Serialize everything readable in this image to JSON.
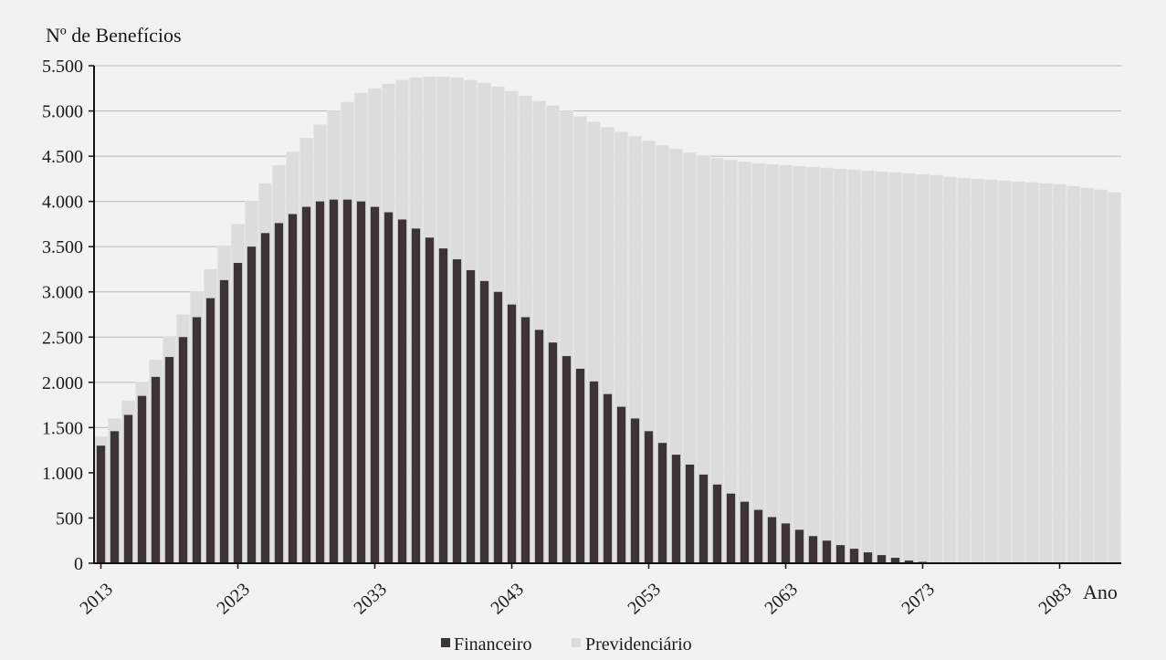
{
  "chart_data": {
    "type": "bar",
    "ylabel": "Nº de Benefícios",
    "xlabel": "Ano",
    "ylim": [
      0,
      5500
    ],
    "yticks": [
      0,
      500,
      1000,
      1500,
      2000,
      2500,
      3000,
      3500,
      4000,
      4500,
      5000,
      5500
    ],
    "ytick_labels": [
      "0",
      "500",
      "1.000",
      "1.500",
      "2.000",
      "2.500",
      "3.000",
      "3.500",
      "4.000",
      "4.500",
      "5.000",
      "5.500"
    ],
    "xtick_labels": [
      "2013",
      "2023",
      "2033",
      "2043",
      "2053",
      "2063",
      "2073",
      "2083"
    ],
    "grid": true,
    "legend_position": "bottom-center",
    "colors": {
      "Financeiro": "#3b3336",
      "Previdenciário": "#dcdcdc"
    },
    "x": [
      2013,
      2014,
      2015,
      2016,
      2017,
      2018,
      2019,
      2020,
      2021,
      2022,
      2023,
      2024,
      2025,
      2026,
      2027,
      2028,
      2029,
      2030,
      2031,
      2032,
      2033,
      2034,
      2035,
      2036,
      2037,
      2038,
      2039,
      2040,
      2041,
      2042,
      2043,
      2044,
      2045,
      2046,
      2047,
      2048,
      2049,
      2050,
      2051,
      2052,
      2053,
      2054,
      2055,
      2056,
      2057,
      2058,
      2059,
      2060,
      2061,
      2062,
      2063,
      2064,
      2065,
      2066,
      2067,
      2068,
      2069,
      2070,
      2071,
      2072,
      2073,
      2074,
      2075,
      2076,
      2077,
      2078,
      2079,
      2080,
      2081,
      2082,
      2083,
      2084,
      2085,
      2086,
      2087
    ],
    "series": [
      {
        "name": "Financeiro",
        "values": [
          1300,
          1460,
          1640,
          1850,
          2060,
          2280,
          2500,
          2720,
          2930,
          3130,
          3320,
          3500,
          3650,
          3760,
          3860,
          3940,
          4000,
          4020,
          4020,
          4000,
          3940,
          3880,
          3800,
          3700,
          3600,
          3480,
          3360,
          3240,
          3120,
          3000,
          2860,
          2720,
          2580,
          2440,
          2290,
          2150,
          2010,
          1870,
          1730,
          1600,
          1460,
          1330,
          1200,
          1090,
          980,
          870,
          770,
          680,
          590,
          510,
          440,
          370,
          300,
          250,
          200,
          160,
          120,
          90,
          60,
          30,
          15,
          0,
          0,
          0,
          0,
          0,
          0,
          0,
          0,
          0,
          0,
          0,
          0,
          0,
          0
        ]
      },
      {
        "name": "Previdenciário",
        "values": [
          1400,
          1600,
          1800,
          2000,
          2250,
          2500,
          2750,
          3000,
          3250,
          3500,
          3750,
          4000,
          4200,
          4400,
          4550,
          4700,
          4850,
          5000,
          5100,
          5200,
          5250,
          5300,
          5340,
          5370,
          5380,
          5380,
          5370,
          5340,
          5310,
          5270,
          5220,
          5170,
          5110,
          5060,
          5000,
          4940,
          4880,
          4820,
          4770,
          4720,
          4670,
          4620,
          4580,
          4540,
          4510,
          4480,
          4460,
          4440,
          4420,
          4410,
          4400,
          4390,
          4380,
          4370,
          4360,
          4350,
          4340,
          4330,
          4320,
          4310,
          4300,
          4290,
          4270,
          4260,
          4250,
          4240,
          4230,
          4220,
          4210,
          4200,
          4190,
          4170,
          4150,
          4130,
          4100
        ]
      }
    ]
  }
}
